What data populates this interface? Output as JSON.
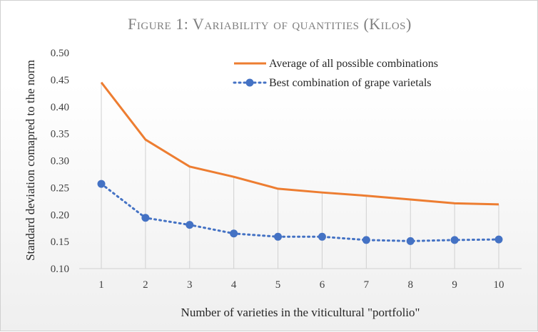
{
  "chart_data": {
    "type": "line",
    "title": "Figure 1: Variability of quantities (Kilos)",
    "xlabel": "Number of varieties in the viticultural \"portfolio\"",
    "ylabel": "Standard deviation comapred to the norm",
    "x": [
      1,
      2,
      3,
      4,
      5,
      6,
      7,
      8,
      9,
      10
    ],
    "ylim": [
      0.1,
      0.5
    ],
    "yticks": [
      "0.10",
      "0.15",
      "0.20",
      "0.25",
      "0.30",
      "0.35",
      "0.40",
      "0.45",
      "0.50"
    ],
    "xgrid": true,
    "legend": "top-right",
    "series": [
      {
        "name": "Average of all possible combinations",
        "color": "#ED7D31",
        "style": "solid",
        "values": [
          0.445,
          0.339,
          0.289,
          0.27,
          0.248,
          0.241,
          0.235,
          0.228,
          0.221,
          0.219
        ]
      },
      {
        "name": "Best combination of grape varietals",
        "color": "#4472C4",
        "style": "dotted-markers",
        "values": [
          0.257,
          0.194,
          0.181,
          0.165,
          0.159,
          0.159,
          0.153,
          0.151,
          0.153,
          0.154
        ]
      }
    ]
  }
}
